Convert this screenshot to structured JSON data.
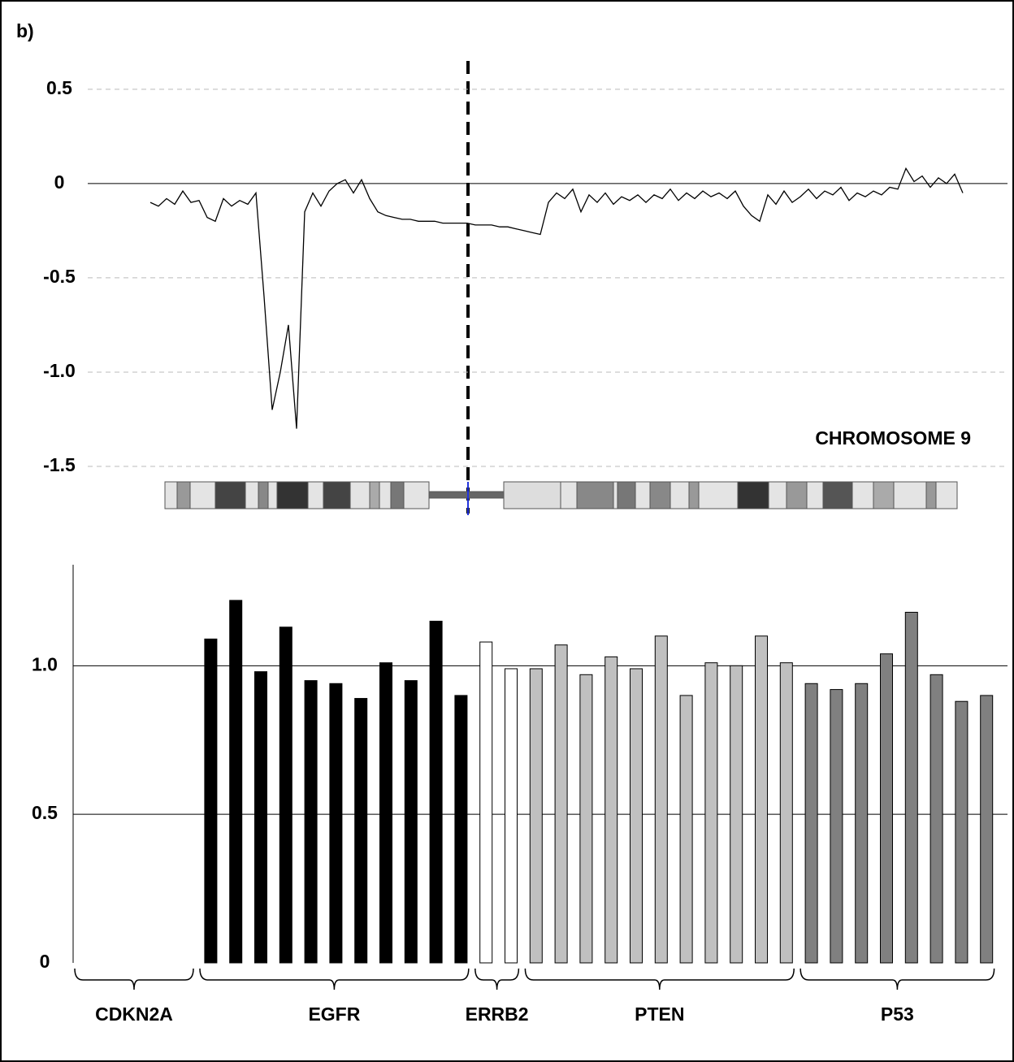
{
  "panel_label": "b)",
  "chart_data": [
    {
      "type": "line",
      "annotation": "CHROMOSOME 9",
      "color": "#000000",
      "ylim": [
        -1.75,
        0.65
      ],
      "yticks": [
        0.5,
        0,
        -0.5,
        {
          "value": -1,
          "label": "-1.0"
        },
        -1.5
      ],
      "grid": true,
      "values": [
        -0.1,
        -0.12,
        -0.08,
        -0.11,
        -0.04,
        -0.1,
        -0.09,
        -0.18,
        -0.2,
        -0.08,
        -0.12,
        -0.09,
        -0.11,
        -0.05,
        -0.6,
        -1.2,
        -1.0,
        -0.75,
        -1.3,
        -0.15,
        -0.05,
        -0.12,
        -0.04,
        0.0,
        0.02,
        -0.05,
        0.02,
        -0.08,
        -0.15,
        -0.17,
        -0.18,
        -0.19,
        -0.19,
        -0.2,
        -0.2,
        -0.2,
        -0.21,
        -0.21,
        -0.21,
        -0.21,
        -0.22,
        -0.22,
        -0.22,
        -0.23,
        -0.23,
        -0.24,
        -0.25,
        -0.26,
        -0.27,
        -0.1,
        -0.05,
        -0.08,
        -0.03,
        -0.15,
        -0.06,
        -0.1,
        -0.05,
        -0.11,
        -0.07,
        -0.09,
        -0.06,
        -0.1,
        -0.06,
        -0.08,
        -0.03,
        -0.09,
        -0.05,
        -0.08,
        -0.04,
        -0.07,
        -0.05,
        -0.08,
        -0.04,
        -0.12,
        -0.17,
        -0.2,
        -0.06,
        -0.11,
        -0.04,
        -0.1,
        -0.07,
        -0.03,
        -0.08,
        -0.04,
        -0.06,
        -0.02,
        -0.09,
        -0.05,
        -0.07,
        -0.04,
        -0.06,
        -0.02,
        -0.03,
        0.08,
        0.01,
        0.04,
        -0.02,
        0.03,
        0.0,
        0.05,
        -0.05
      ]
    },
    {
      "type": "bar",
      "ylim": [
        0,
        1.34
      ],
      "yticks": [
        0,
        0.5,
        {
          "value": 1,
          "label": "1.0"
        }
      ],
      "grid": true,
      "series": [
        {
          "name": "CDKN2A",
          "values": []
        },
        {
          "name": "EGFR",
          "color": "#000000",
          "values": [
            1.09,
            1.22,
            0.98,
            1.13,
            0.95,
            0.94,
            0.89,
            1.01,
            0.95,
            1.15,
            0.9
          ]
        },
        {
          "name": "ERRB2",
          "color": "#ffffff",
          "values": [
            1.08,
            0.99
          ]
        },
        {
          "name": "PTEN",
          "color": "#c0c0c0",
          "values": [
            0.99,
            1.07,
            0.97,
            1.03,
            0.99,
            1.1,
            0.9,
            1.01,
            1.0,
            1.1,
            1.01
          ]
        },
        {
          "name": "P53",
          "color": "#808080",
          "values": [
            0.94,
            0.92,
            0.94,
            1.04,
            1.18,
            0.97,
            0.88,
            0.9
          ]
        }
      ]
    }
  ]
}
